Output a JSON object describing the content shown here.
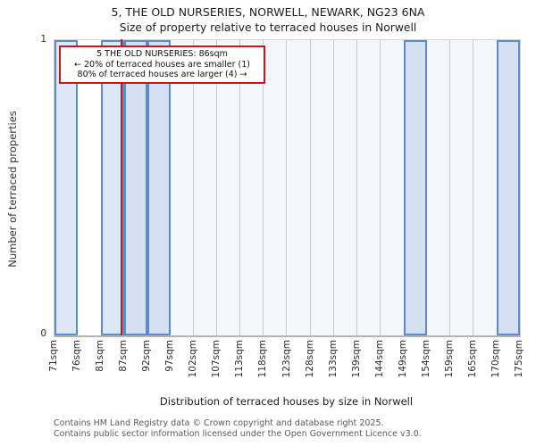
{
  "title": "5, THE OLD NURSERIES, NORWELL, NEWARK, NG23 6NA",
  "subtitle": "Size of property relative to terraced houses in Norwell",
  "annotation": {
    "lines": [
      "5 THE OLD NURSERIES: 86sqm",
      "← 20% of terraced houses are smaller (1)",
      "80% of terraced houses are larger (4) →"
    ]
  },
  "y_axis": {
    "label": "Number of terraced properties",
    "tick_top": "1",
    "tick_bottom": "0"
  },
  "x_axis": {
    "label": "Distribution of terraced houses by size in Norwell",
    "tick_labels": [
      "71sqm",
      "76sqm",
      "81sqm",
      "87sqm",
      "92sqm",
      "97sqm",
      "102sqm",
      "107sqm",
      "113sqm",
      "118sqm",
      "123sqm",
      "128sqm",
      "133sqm",
      "139sqm",
      "144sqm",
      "149sqm",
      "154sqm",
      "159sqm",
      "165sqm",
      "170sqm",
      "175sqm"
    ]
  },
  "footer": {
    "line1": "Contains HM Land Registry data © Crown copyright and database right 2025.",
    "line2": "Contains public sector information licensed under the Open Government Licence v3.0."
  },
  "chart_data": {
    "type": "bar",
    "subtype": "histogram",
    "title": "5, THE OLD NURSERIES, NORWELL, NEWARK, NG23 6NA — Size of property relative to terraced houses in Norwell",
    "xlabel": "Distribution of terraced houses by size in Norwell",
    "ylabel": "Number of terraced properties",
    "ylim": [
      0,
      1
    ],
    "bin_count": 20,
    "bin_edges_labels": [
      "71sqm",
      "76sqm",
      "81sqm",
      "87sqm",
      "92sqm",
      "97sqm",
      "102sqm",
      "107sqm",
      "113sqm",
      "118sqm",
      "123sqm",
      "128sqm",
      "133sqm",
      "139sqm",
      "144sqm",
      "149sqm",
      "154sqm",
      "159sqm",
      "165sqm",
      "170sqm",
      "175sqm"
    ],
    "counts": [
      1,
      0,
      1,
      1,
      1,
      0,
      0,
      0,
      0,
      0,
      0,
      0,
      0,
      0,
      0,
      1,
      0,
      0,
      0,
      1
    ],
    "property": {
      "name": "5 THE OLD NURSERIES",
      "size_sqm": 86,
      "bin_index": 2,
      "fraction_in_bin": 0.91,
      "smaller_pct": 20,
      "smaller_count": 1,
      "larger_pct": 80,
      "larger_count": 4
    },
    "colors": {
      "bar_fill_default": "#d5e1f3",
      "bar_fill_light": "#dde8f6",
      "light_fill_bins": [
        0,
        2
      ],
      "bar_border": "#5b8bc9",
      "empty_bin_fill": "#f3f6fc",
      "white_bins": [
        1
      ],
      "separator": "#c9c9c9",
      "marker_line": "#b01e24",
      "annotation_border": "#cc1616"
    }
  }
}
